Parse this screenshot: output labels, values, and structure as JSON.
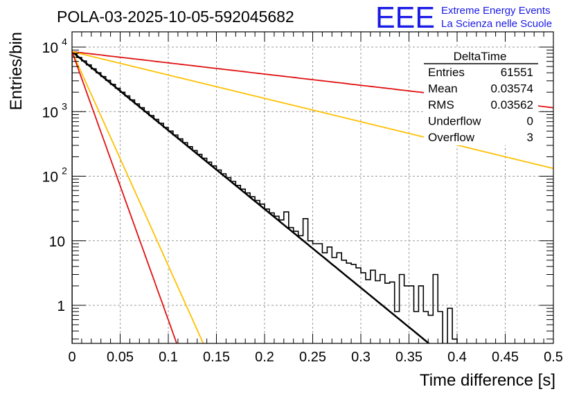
{
  "chart_data": {
    "type": "histogram",
    "title": "POLA-03-2025-10-05-592045682",
    "xlabel": "Time difference [s]",
    "ylabel": "Entries/bin",
    "xlim": [
      0,
      0.5
    ],
    "ylim_log": [
      0.25,
      15000
    ],
    "x_ticks": [
      "0",
      "0.05",
      "0.1",
      "0.15",
      "0.2",
      "0.25",
      "0.3",
      "0.35",
      "0.4",
      "0.45",
      "0.5"
    ],
    "y_ticks": [
      {
        "value": 1,
        "base": "1",
        "exp": ""
      },
      {
        "value": 10,
        "base": "10",
        "exp": ""
      },
      {
        "value": 100,
        "base": "10",
        "exp": "2"
      },
      {
        "value": 1000,
        "base": "10",
        "exp": "3"
      },
      {
        "value": 10000,
        "base": "10",
        "exp": "4"
      }
    ],
    "logo": {
      "mark": "EEE",
      "line1": "Extreme Energy Events",
      "line2": "La Scienza nelle Scuole",
      "color": "#1a1ae6"
    },
    "stats": {
      "title": "DeltaTime",
      "rows": [
        {
          "label": "Entries",
          "value": "61551"
        },
        {
          "label": "Mean",
          "value": "0.03574"
        },
        {
          "label": "RMS",
          "value": "0.03562"
        },
        {
          "label": "Underflow",
          "value": "0"
        },
        {
          "label": "Overflow",
          "value": "3"
        }
      ]
    },
    "hist": {
      "bin_width": 0.005,
      "counts": [
        7800,
        6900,
        6100,
        5300,
        4600,
        4000,
        3500,
        3050,
        2650,
        2300,
        2000,
        1750,
        1520,
        1320,
        1150,
        1000,
        870,
        760,
        660,
        570,
        500,
        435,
        378,
        330,
        287,
        250,
        218,
        190,
        165,
        144,
        125,
        109,
        95,
        83,
        72,
        63,
        55,
        48,
        42,
        37,
        31,
        27,
        24,
        21,
        28,
        16,
        14,
        12,
        22,
        10,
        9,
        9,
        6.5,
        8,
        5.5,
        6.5,
        5,
        4.5,
        4.3,
        3.8,
        3.2,
        2.5,
        3.5,
        2.4,
        3,
        2.2,
        2.3,
        0.8,
        3,
        2,
        2,
        0.8,
        2,
        0.8,
        0.7,
        3,
        0.8,
        0.2,
        0.9,
        0.3,
        0.2,
        0.2,
        0.2,
        0.2,
        0.2,
        0.2,
        0.2,
        0.2,
        0.2,
        0,
        0,
        0,
        0,
        0,
        0,
        0,
        0,
        0,
        0,
        0
      ],
      "color": "#000000"
    },
    "fits": [
      {
        "name": "fit",
        "color": "#000000",
        "width": 2.5,
        "A": 8500,
        "tau": 0.03562
      },
      {
        "name": "slow-red",
        "color": "#e01010",
        "width": 1.8,
        "A": 8500,
        "tau": 0.25
      },
      {
        "name": "slow-orange",
        "color": "#ffc000",
        "width": 1.8,
        "A": 8500,
        "tau": 0.12
      },
      {
        "name": "fast-orange",
        "color": "#ffc000",
        "width": 1.8,
        "A": 8500,
        "tau": 0.0131
      },
      {
        "name": "fast-red",
        "color": "#e01010",
        "width": 1.8,
        "A": 8500,
        "tau": 0.01045
      }
    ]
  }
}
